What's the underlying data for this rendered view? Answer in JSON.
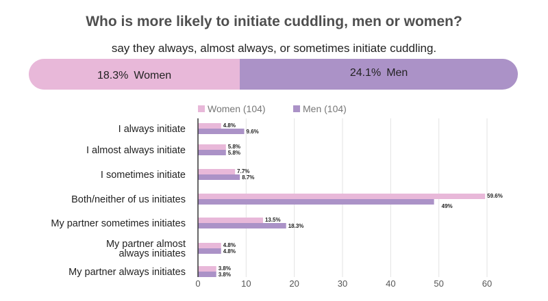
{
  "title": "Who is more likely to initiate cuddling, men or women?",
  "subtitle": "say they always, almost always, or sometimes initiate cuddling.",
  "summary": {
    "women": {
      "pct": "18.3%",
      "label": "Women",
      "value": 18.3,
      "color": "#e8b8d9"
    },
    "men": {
      "pct": "24.1%",
      "label": "Men",
      "value": 24.1,
      "color": "#ab92c7"
    }
  },
  "chart_data": {
    "type": "bar",
    "orientation": "horizontal",
    "categories": [
      "I always initiate",
      "I almost always initiate",
      "I sometimes initiate",
      "Both/neither of us initiates",
      "My partner sometimes initiates",
      "My partner almost always initiates",
      "My partner always initiates"
    ],
    "series": [
      {
        "name": "Women (104)",
        "color": "#e8b8d9",
        "values": [
          4.8,
          5.8,
          7.7,
          59.6,
          13.5,
          4.8,
          3.8
        ],
        "labels": [
          "4.8%",
          "5.8%",
          "7.7%",
          "59.6%",
          "13.5%",
          "4.8%",
          "3.8%"
        ]
      },
      {
        "name": "Men (104)",
        "color": "#ab92c7",
        "values": [
          9.6,
          5.8,
          8.7,
          49,
          18.3,
          4.8,
          3.8
        ],
        "labels": [
          "9.6%",
          "5.8%",
          "8.7%",
          "49%",
          "18.3%",
          "4.8%",
          "3.8%"
        ]
      }
    ],
    "xlim": [
      0,
      60
    ],
    "xticks": [
      "0",
      "10",
      "20",
      "30",
      "40",
      "50",
      "60"
    ],
    "grid": true,
    "legend": "top"
  }
}
